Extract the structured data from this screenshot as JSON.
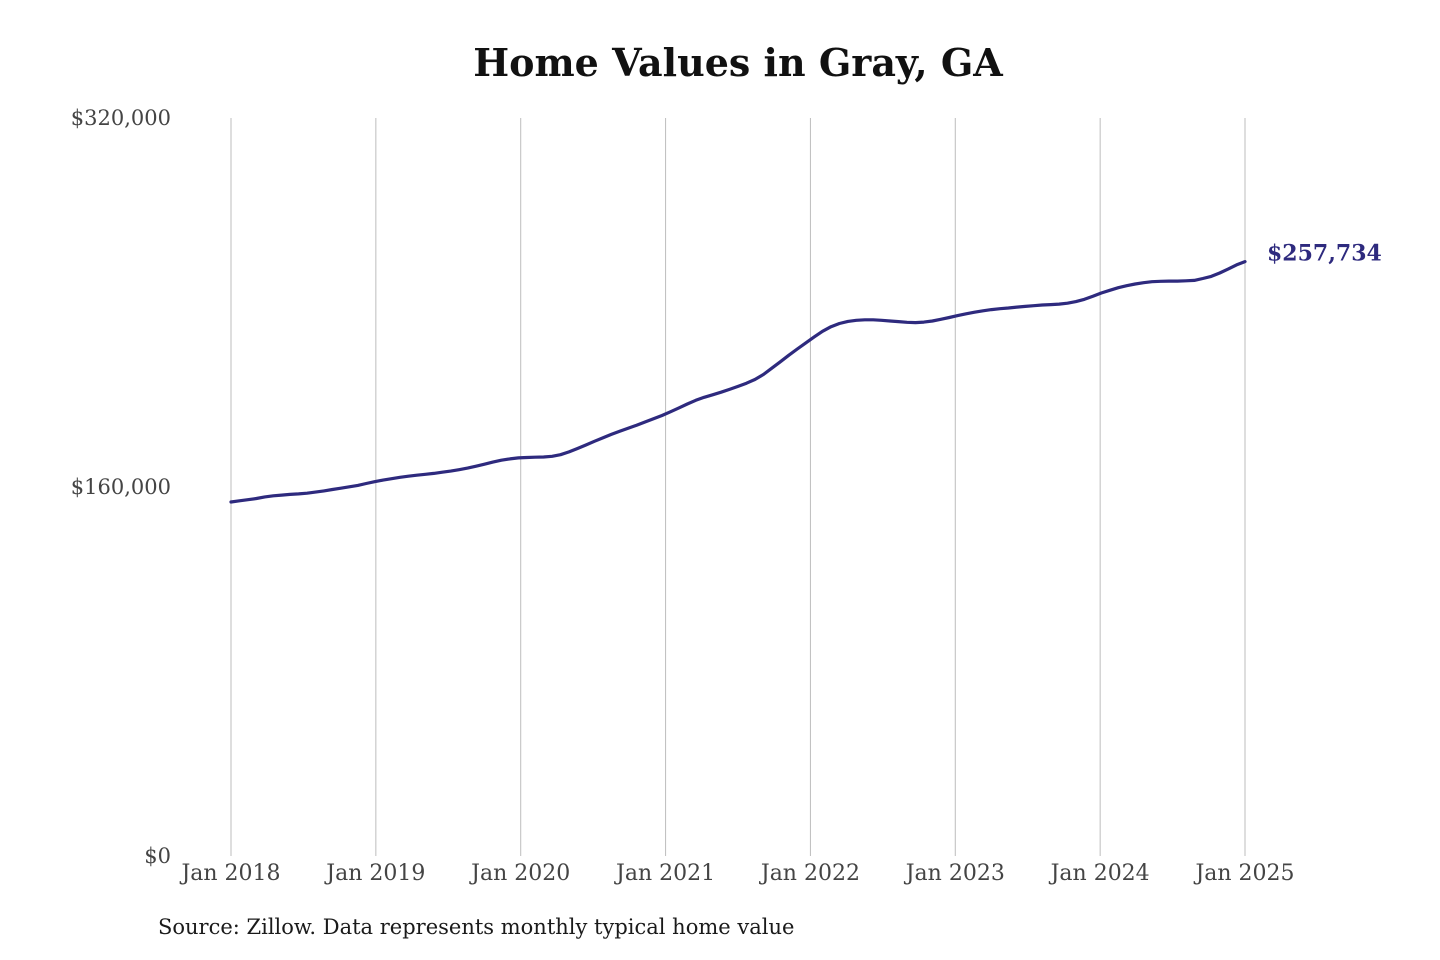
{
  "title": "Home Values in Gray, GA",
  "source_note": "Source: Zillow. Data represents monthly typical home value",
  "end_label": "$257,734",
  "colors": {
    "line": "#2e2a7e",
    "grid": "#bdbdbd",
    "tick_text": "#444444"
  },
  "chart_data": {
    "type": "line",
    "title": "Home Values in Gray, GA",
    "xlabel": "",
    "ylabel": "",
    "ylim": [
      0,
      320000
    ],
    "y_ticks": [
      0,
      160000,
      320000
    ],
    "y_tick_labels": [
      "$0",
      "$160,000",
      "$320,000"
    ],
    "x_ticks": [
      "Jan 2018",
      "Jan 2019",
      "Jan 2020",
      "Jan 2021",
      "Jan 2022",
      "Jan 2023",
      "Jan 2024",
      "Jan 2025"
    ],
    "grid": "vertical",
    "series": [
      {
        "values": [
          153500,
          154000,
          154500,
          155000,
          155700,
          156200,
          156500,
          156800,
          157000,
          157300,
          157800,
          158300,
          158900,
          159500,
          160100,
          160700,
          161500,
          162300,
          163000,
          163600,
          164200,
          164700,
          165100,
          165500,
          165900,
          166400,
          166900,
          167500,
          168200,
          169000,
          169900,
          170800,
          171600,
          172200,
          172600,
          172800,
          172900,
          173000,
          173300,
          174000,
          175200,
          176700,
          178200,
          179800,
          181300,
          182800,
          184200,
          185500,
          186800,
          188200,
          189600,
          191000,
          192600,
          194300,
          196000,
          197600,
          198900,
          200000,
          201100,
          202300,
          203600,
          205000,
          206600,
          208800,
          211500,
          214300,
          217100,
          219800,
          222400,
          225000,
          227500,
          229500,
          230900,
          231800,
          232300,
          232500,
          232500,
          232300,
          232000,
          231700,
          231400,
          231300,
          231500,
          232000,
          232700,
          233500,
          234300,
          235100,
          235800,
          236400,
          236900,
          237300,
          237600,
          238000,
          238300,
          238600,
          238900,
          239100,
          239300,
          239700,
          240400,
          241400,
          242700,
          244100,
          245300,
          246400,
          247300,
          248000,
          248600,
          249000,
          249200,
          249300,
          249300,
          249400,
          249600,
          250400,
          251300,
          252800,
          254500,
          256300,
          257734
        ]
      }
    ]
  }
}
